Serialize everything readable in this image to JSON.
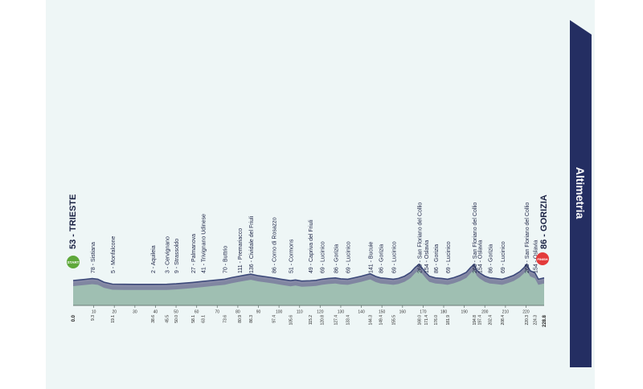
{
  "header": {
    "title": "Altimetria"
  },
  "colors": {
    "line": "#3d4a7a",
    "fill": "#9fbfb2",
    "band": "#7c7f9e",
    "ribbon": "#242e62",
    "start": "#5ea83a",
    "finish": "#e33b3b",
    "panel": "#eef6f6"
  },
  "badges": {
    "start": "START",
    "finish": "FINISH"
  },
  "chart_data": {
    "type": "area",
    "title": "",
    "xlabel": "",
    "ylabel": "",
    "xlim": [
      0,
      228.8
    ],
    "ylim": [
      0,
      300
    ],
    "x_axis_ticks": [
      "10",
      "20",
      "30",
      "40",
      "50",
      "60",
      "70",
      "80",
      "90",
      "100",
      "110",
      "120",
      "130",
      "140",
      "150",
      "160",
      "170",
      "180",
      "190",
      "200",
      "210",
      "220"
    ],
    "km_marks": [
      "0.0",
      "9.3",
      "19.1",
      "38.6",
      "45.5",
      "50.0",
      "58.1",
      "63.1",
      "73.6",
      "80.9",
      "86.3",
      "97.4",
      "105.6",
      "115.2",
      "120.8",
      "127.4",
      "133.4",
      "144.3",
      "149.4",
      "155.5",
      "168.0",
      "171.4",
      "176.0",
      "181.9",
      "194.8",
      "197.4",
      "202.4",
      "208.4",
      "220.3",
      "224.3",
      "228.8"
    ],
    "km_marks_bold": [
      "0.0",
      "228.8"
    ],
    "x": [
      0,
      3,
      6,
      9.3,
      12,
      15,
      19.1,
      25,
      30,
      38.6,
      45.5,
      50,
      55,
      58.1,
      63.1,
      68,
      73.6,
      77,
      80.9,
      84,
      86.3,
      90,
      94,
      97.4,
      101,
      105.6,
      108,
      111,
      115.2,
      118,
      120.8,
      124,
      127.4,
      130,
      133.4,
      137,
      140,
      144.3,
      147,
      149.4,
      152,
      155.5,
      158,
      161,
      164,
      166,
      168,
      170,
      171.4,
      173,
      176,
      179,
      181.9,
      185,
      188,
      191,
      193,
      194.8,
      196,
      197.4,
      200,
      202.4,
      205,
      208.4,
      211,
      214,
      217,
      219,
      220.3,
      222,
      224.3,
      226,
      228.8
    ],
    "y": [
      53,
      60,
      68,
      78,
      70,
      30,
      5,
      3,
      2,
      2,
      3,
      9,
      20,
      27,
      41,
      55,
      70,
      90,
      111,
      125,
      136,
      115,
      100,
      86,
      70,
      51,
      60,
      45,
      49,
      55,
      69,
      80,
      86,
      75,
      69,
      90,
      110,
      141,
      105,
      86,
      80,
      69,
      80,
      110,
      160,
      220,
      265,
      200,
      154,
      110,
      86,
      80,
      69,
      90,
      120,
      160,
      220,
      265,
      190,
      154,
      110,
      86,
      80,
      69,
      90,
      120,
      170,
      220,
      265,
      180,
      154,
      70,
      86
    ],
    "waypoints": [
      {
        "label": "53 - TRIESTE",
        "km": 0.0,
        "alt": 53,
        "major": true
      },
      {
        "label": "78 - Sistiana",
        "km": 9.3,
        "alt": 78
      },
      {
        "label": "5 - Monfalcone",
        "km": 19.1,
        "alt": 5
      },
      {
        "label": "2 - Aquileia",
        "km": 38.6,
        "alt": 2
      },
      {
        "label": "3 - Cervignano",
        "km": 45.5,
        "alt": 3
      },
      {
        "label": "9 - Strassoldo",
        "km": 50.0,
        "alt": 9
      },
      {
        "label": "27 - Palmanova",
        "km": 58.1,
        "alt": 27
      },
      {
        "label": "41 - Trivignano Udinese",
        "km": 63.1,
        "alt": 41
      },
      {
        "label": "70 - Buttrio",
        "km": 73.6,
        "alt": 70
      },
      {
        "label": "111 - Premariacco",
        "km": 80.9,
        "alt": 111
      },
      {
        "label": "136 - Cividale del Friuli",
        "km": 86.3,
        "alt": 136
      },
      {
        "label": "86 - Corno di Rosazzo",
        "km": 97.4,
        "alt": 86
      },
      {
        "label": "51 - Cormons",
        "km": 105.6,
        "alt": 51
      },
      {
        "label": "49 - Capriva del Friuli",
        "km": 115.2,
        "alt": 49
      },
      {
        "label": "69 - Lucinico",
        "km": 120.8,
        "alt": 69
      },
      {
        "label": "86 - Gorizia",
        "km": 127.4,
        "alt": 86
      },
      {
        "label": "69 - Lucinico",
        "km": 133.4,
        "alt": 69
      },
      {
        "label": "141 - Bucuie",
        "km": 144.3,
        "alt": 141
      },
      {
        "label": "86 - Gorizia",
        "km": 149.4,
        "alt": 86
      },
      {
        "label": "69 - Lucinico",
        "km": 155.5,
        "alt": 69
      },
      {
        "label": "265 - San Floriano del Collio",
        "km": 168.0,
        "alt": 265
      },
      {
        "label": "154 - Oslavia",
        "km": 171.4,
        "alt": 154
      },
      {
        "label": "86 - Gorizia",
        "km": 176.0,
        "alt": 86
      },
      {
        "label": "69 - Lucinico",
        "km": 181.9,
        "alt": 69
      },
      {
        "label": "265 - San Floriano del Collio",
        "km": 194.8,
        "alt": 265
      },
      {
        "label": "154 - Oslavia",
        "km": 197.4,
        "alt": 154
      },
      {
        "label": "86 - Gorizia",
        "km": 202.4,
        "alt": 86
      },
      {
        "label": "69 - Lucinico",
        "km": 208.4,
        "alt": 69
      },
      {
        "label": "265 - San Floriano del Collio",
        "km": 220.3,
        "alt": 265
      },
      {
        "label": "154 - Oslavia",
        "km": 224.3,
        "alt": 154
      },
      {
        "label": "86 - GORIZIA",
        "km": 228.8,
        "alt": 86,
        "major": true
      }
    ]
  }
}
